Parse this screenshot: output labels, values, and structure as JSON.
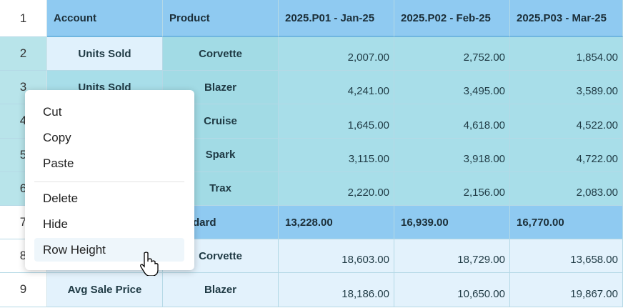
{
  "sheet": {
    "columns": [
      "Account",
      "Product",
      "2025.P01 - Jan-25",
      "2025.P02 - Feb-25",
      "2025.P03 - Mar-25"
    ],
    "header_row_number": "1",
    "rows": [
      {
        "num": "2",
        "account": "Units Sold",
        "product": "Corvette",
        "values": [
          "2,007.00",
          "2,752.00",
          "1,854.00"
        ]
      },
      {
        "num": "3",
        "account": "Units Sold",
        "product": "Blazer",
        "values": [
          "4,241.00",
          "3,495.00",
          "3,589.00"
        ]
      },
      {
        "num": "4",
        "product": "Cruise",
        "values": [
          "1,645.00",
          "4,618.00",
          "4,522.00"
        ]
      },
      {
        "num": "5",
        "product": "Spark",
        "values": [
          "3,115.00",
          "3,918.00",
          "4,722.00"
        ]
      },
      {
        "num": "6",
        "product": "Trax",
        "values": [
          "2,220.00",
          "2,156.00",
          "2,083.00"
        ]
      },
      {
        "num": "7",
        "label": "dard",
        "values": [
          "13,228.00",
          "16,939.00",
          "16,770.00"
        ]
      },
      {
        "num": "8",
        "product": "Corvette",
        "values": [
          "18,603.00",
          "18,729.00",
          "13,658.00"
        ]
      },
      {
        "num": "9",
        "account": "Avg Sale Price",
        "product": "Blazer",
        "values": [
          "18,186.00",
          "10,650.00",
          "19,867.00"
        ]
      }
    ]
  },
  "menu": {
    "groups": [
      [
        "Cut",
        "Copy",
        "Paste"
      ],
      [
        "Delete",
        "Hide",
        "Row Height"
      ]
    ]
  }
}
